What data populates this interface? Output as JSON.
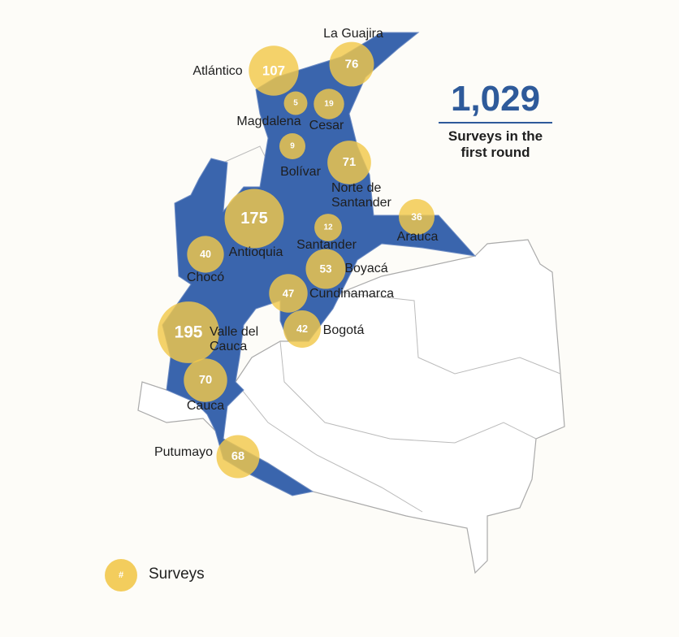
{
  "total": {
    "value": "1,029",
    "caption": "Surveys in the first round"
  },
  "regions": [
    {
      "name": "La Guajira",
      "surveys": 76
    },
    {
      "name": "Atlántico",
      "surveys": 107
    },
    {
      "name": "Magdalena",
      "surveys": 5
    },
    {
      "name": "Cesar",
      "surveys": 19
    },
    {
      "name": "Bolívar",
      "surveys": 9
    },
    {
      "name": "Norte de Santander",
      "surveys": 71
    },
    {
      "name": "Arauca",
      "surveys": 36
    },
    {
      "name": "Antioquia",
      "surveys": 175
    },
    {
      "name": "Santander",
      "surveys": 12
    },
    {
      "name": "Chocó",
      "surveys": 40
    },
    {
      "name": "Boyacá",
      "surveys": 53
    },
    {
      "name": "Cundinamarca",
      "surveys": 47
    },
    {
      "name": "Bogotá",
      "surveys": 42
    },
    {
      "name": "Valle del Cauca",
      "surveys": 195
    },
    {
      "name": "Cauca",
      "surveys": 70
    },
    {
      "name": "Putumayo",
      "surveys": 68
    }
  ],
  "legend": {
    "symbol": "#",
    "label": "Surveys"
  }
}
